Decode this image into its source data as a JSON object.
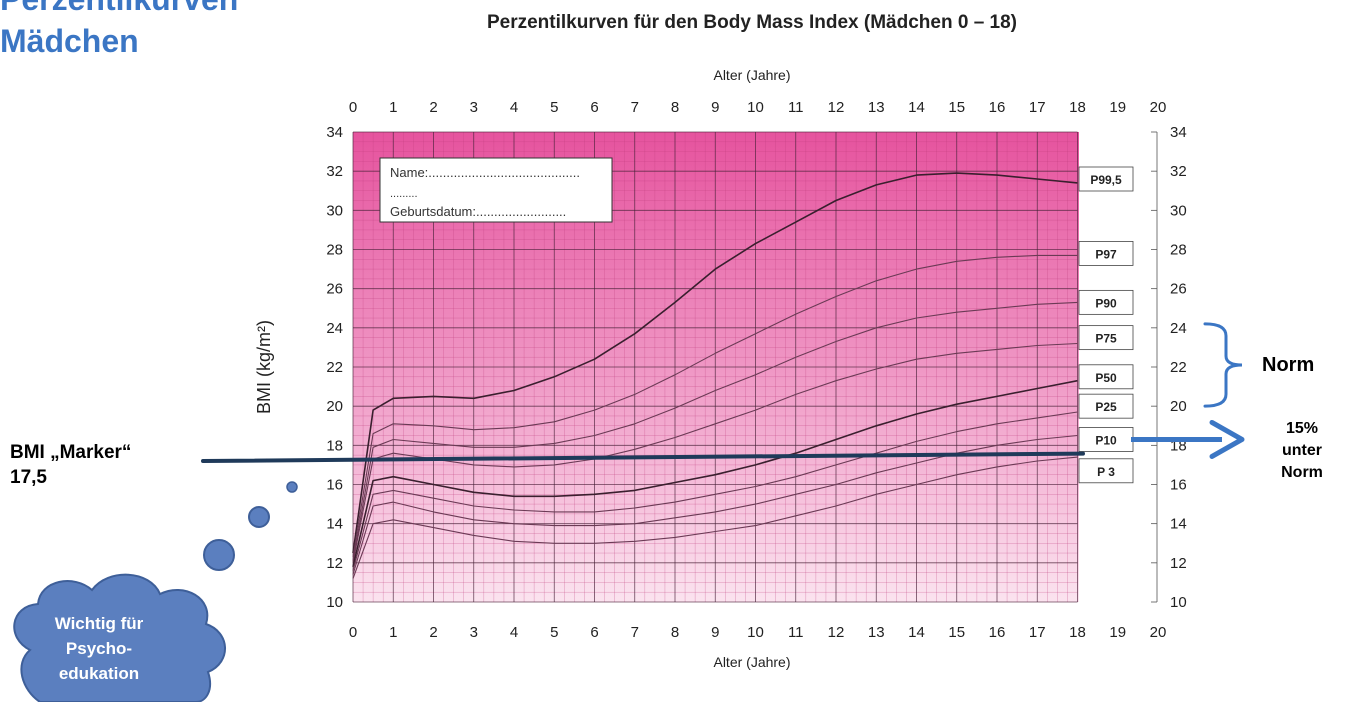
{
  "slide": {
    "title_lines": [
      "Perzentilkurven",
      "Mädchen"
    ],
    "marker_label_lines": [
      "BMI „Marker“",
      "17,5"
    ],
    "norm_label": "Norm",
    "under_norm_lines": [
      "15%",
      "unter",
      "Norm"
    ],
    "thought_bubble_lines": [
      "Wichtig für",
      "Psycho-",
      "edukation"
    ],
    "colors": {
      "title": "#3b76c4",
      "annotation": "#3b76c4",
      "marker_line": "#1f3a5a",
      "bubble": "#5b7fbf"
    }
  },
  "chart_data": {
    "type": "line",
    "title": "Perzentilkurven für den Body Mass Index (Mädchen 0 – 18)",
    "xlabel": "Alter (Jahre)",
    "ylabel": "BMI (kg/m²)",
    "xlim": [
      0,
      20
    ],
    "ylim": [
      10,
      34
    ],
    "x_ticks": [
      0,
      1,
      2,
      3,
      4,
      5,
      6,
      7,
      8,
      9,
      10,
      11,
      12,
      13,
      14,
      15,
      16,
      17,
      18,
      19,
      20
    ],
    "y_ticks": [
      10,
      12,
      14,
      16,
      18,
      20,
      22,
      24,
      26,
      28,
      30,
      32,
      34
    ],
    "grid": true,
    "name_box": {
      "name": "Name:..........................................",
      "dots": ".........",
      "birth": "Geburtsdatum:........................."
    },
    "series": [
      {
        "name": "P99,5",
        "x": [
          0,
          0.5,
          1,
          2,
          3,
          4,
          5,
          6,
          7,
          8,
          9,
          10,
          11,
          12,
          13,
          14,
          15,
          16,
          17,
          18
        ],
        "values": [
          12.5,
          19.8,
          20.4,
          20.5,
          20.4,
          20.8,
          21.5,
          22.4,
          23.7,
          25.3,
          27.0,
          28.3,
          29.4,
          30.5,
          31.3,
          31.8,
          31.9,
          31.8,
          31.6,
          31.4
        ]
      },
      {
        "name": "P97",
        "x": [
          0,
          0.5,
          1,
          2,
          3,
          4,
          5,
          6,
          7,
          8,
          9,
          10,
          11,
          12,
          13,
          14,
          15,
          16,
          17,
          18
        ],
        "values": [
          12.3,
          18.6,
          19.1,
          19.0,
          18.8,
          18.9,
          19.2,
          19.8,
          20.6,
          21.6,
          22.7,
          23.7,
          24.7,
          25.6,
          26.4,
          27.0,
          27.4,
          27.6,
          27.7,
          27.7
        ]
      },
      {
        "name": "P90",
        "x": [
          0,
          0.5,
          1,
          2,
          3,
          4,
          5,
          6,
          7,
          8,
          9,
          10,
          11,
          12,
          13,
          14,
          15,
          16,
          17,
          18
        ],
        "values": [
          12.1,
          17.9,
          18.3,
          18.1,
          17.9,
          17.9,
          18.1,
          18.5,
          19.1,
          19.9,
          20.8,
          21.6,
          22.5,
          23.3,
          24.0,
          24.5,
          24.8,
          25.0,
          25.2,
          25.3
        ]
      },
      {
        "name": "P75",
        "x": [
          0,
          0.5,
          1,
          2,
          3,
          4,
          5,
          6,
          7,
          8,
          9,
          10,
          11,
          12,
          13,
          14,
          15,
          16,
          17,
          18
        ],
        "values": [
          12.0,
          17.3,
          17.6,
          17.3,
          17.0,
          16.9,
          17.0,
          17.3,
          17.8,
          18.4,
          19.1,
          19.8,
          20.6,
          21.3,
          21.9,
          22.4,
          22.7,
          22.9,
          23.1,
          23.2
        ]
      },
      {
        "name": "P50",
        "x": [
          0,
          0.5,
          1,
          2,
          3,
          4,
          5,
          6,
          7,
          8,
          9,
          10,
          11,
          12,
          13,
          14,
          15,
          16,
          17,
          18
        ],
        "values": [
          11.8,
          16.2,
          16.4,
          16.0,
          15.6,
          15.4,
          15.4,
          15.5,
          15.7,
          16.1,
          16.5,
          17.0,
          17.6,
          18.3,
          19.0,
          19.6,
          20.1,
          20.5,
          20.9,
          21.3
        ]
      },
      {
        "name": "P25",
        "x": [
          0,
          0.5,
          1,
          2,
          3,
          4,
          5,
          6,
          7,
          8,
          9,
          10,
          11,
          12,
          13,
          14,
          15,
          16,
          17,
          18
        ],
        "values": [
          11.6,
          15.5,
          15.7,
          15.3,
          14.9,
          14.7,
          14.6,
          14.6,
          14.8,
          15.1,
          15.5,
          15.9,
          16.4,
          17.0,
          17.6,
          18.2,
          18.7,
          19.1,
          19.4,
          19.7
        ]
      },
      {
        "name": "P10",
        "x": [
          0,
          0.5,
          1,
          2,
          3,
          4,
          5,
          6,
          7,
          8,
          9,
          10,
          11,
          12,
          13,
          14,
          15,
          16,
          17,
          18
        ],
        "values": [
          11.4,
          14.9,
          15.1,
          14.6,
          14.2,
          14.0,
          13.9,
          13.9,
          14.0,
          14.3,
          14.6,
          15.0,
          15.5,
          16.0,
          16.6,
          17.1,
          17.6,
          18.0,
          18.3,
          18.5
        ]
      },
      {
        "name": "P 3",
        "x": [
          0,
          0.5,
          1,
          2,
          3,
          4,
          5,
          6,
          7,
          8,
          9,
          10,
          11,
          12,
          13,
          14,
          15,
          16,
          17,
          18
        ],
        "values": [
          11.2,
          14.0,
          14.2,
          13.8,
          13.4,
          13.1,
          13.0,
          13.0,
          13.1,
          13.3,
          13.6,
          13.9,
          14.4,
          14.9,
          15.5,
          16.0,
          16.5,
          16.9,
          17.2,
          17.4
        ]
      }
    ],
    "highlight_series": "P50",
    "series_label_y": {
      "P99,5": 31.6,
      "P97": 27.8,
      "P90": 25.3,
      "P75": 23.5,
      "P50": 21.5,
      "P25": 20.0,
      "P10": 18.3,
      "P 3": 16.7
    },
    "annotations": {
      "marker_value": 17.5,
      "norm_range": [
        20,
        24.2
      ]
    }
  }
}
